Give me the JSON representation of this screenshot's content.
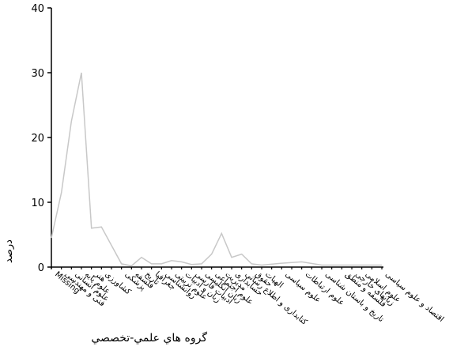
{
  "chart_data": {
    "type": "line",
    "title": "",
    "xlabel": "گروه هاي علمي-تخصصي",
    "ylabel": "درصد",
    "ylim": [
      0,
      40
    ],
    "yticks": [
      0,
      10,
      20,
      30,
      40
    ],
    "grid": false,
    "line_color": "#c8c8c8",
    "categories": [
      "Missing",
      "فنی و مهندسی",
      "علوم انسانی",
      "علوم پایه",
      "هنر",
      "کشاورزی",
      "پزشکی",
      "فلسفه",
      "تاریخ",
      "جغرافیا",
      "روانشناسی",
      "علوم تربیتی",
      "زبان و ادبیات",
      "ادبیات فارسی",
      "زبان انگلیسی",
      "علوم اجتماعی",
      "مدیریت",
      "حسابداری",
      "کتابداری و اطلاع رسانی",
      "حقوق",
      "الهیات",
      "علوم سیاسی",
      "علوم ارتباطات",
      "تاریخ و باستان شناسی",
      "فلسفه و منطق",
      "زبانهای خارجی",
      "علوم اسلامی",
      "اقتصاد و علوم سیاسی"
    ],
    "categories_full_count": 34,
    "values": [
      4.5,
      11.5,
      22.5,
      30.0,
      6.0,
      6.2,
      0.5,
      0.2,
      1.5,
      0.5,
      0.5,
      1.0,
      0.8,
      0.4,
      0.5,
      2.0,
      5.2,
      1.5,
      2.0,
      0.5,
      0.3,
      0.6,
      0.8,
      0.3,
      0.3,
      0.3,
      0.3,
      0.3
    ],
    "x_points": [
      0,
      1,
      2,
      3,
      4,
      5,
      6,
      7,
      8,
      9,
      10,
      11,
      12,
      13,
      14,
      15,
      16,
      17,
      18,
      19,
      20,
      21,
      22,
      23,
      24,
      25,
      26,
      27
    ],
    "x_positions_full": [
      0,
      1,
      2,
      3,
      4,
      5,
      7,
      8,
      9,
      10,
      11,
      12,
      13,
      14,
      15,
      16,
      17,
      18,
      19,
      20,
      21,
      23,
      25,
      27,
      29,
      30,
      31,
      33
    ]
  }
}
